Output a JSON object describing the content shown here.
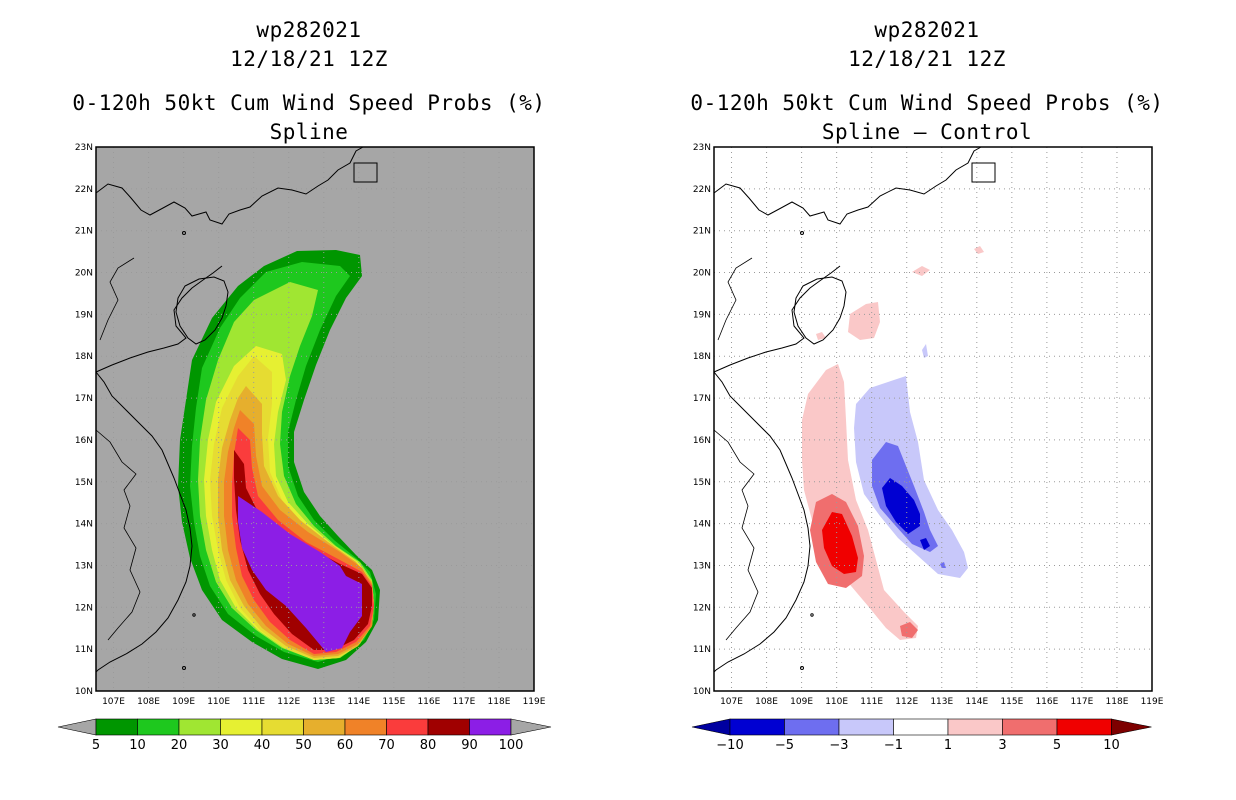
{
  "left": {
    "title_id": "wp282021",
    "title_date": "12/18/21 12Z",
    "title_product": "0-120h 50kt Cum Wind Speed Probs (%)",
    "subtitle": "Spline",
    "background": "#a6a6a6",
    "colorbar": {
      "labels": [
        "5",
        "10",
        "20",
        "30",
        "40",
        "50",
        "60",
        "70",
        "80",
        "90",
        "100"
      ],
      "colors": [
        "#009600",
        "#1ec81e",
        "#a0e632",
        "#e6f032",
        "#e6dc32",
        "#e6af2d",
        "#f08228",
        "#fa3c3c",
        "#a00000",
        "#8c1ee6"
      ],
      "under_color": "#a6a6a6",
      "over_color": "#a6a6a6"
    }
  },
  "right": {
    "title_id": "wp282021",
    "title_date": "12/18/21 12Z",
    "title_product": "0-120h 50kt Cum Wind Speed Probs (%)",
    "subtitle": "Spline – Control",
    "background": "#ffffff",
    "colorbar": {
      "labels": [
        "−10",
        "−5",
        "−3",
        "−1",
        "1",
        "3",
        "5",
        "10"
      ],
      "colors": [
        "#0000d2",
        "#6e6ef0",
        "#c8c8fa",
        "#ffffff",
        "#fac8c8",
        "#f06e6e",
        "#f00000"
      ],
      "under_color": "#0000a0",
      "over_color": "#7d0000"
    }
  },
  "map": {
    "lat_labels": [
      "23N",
      "22N",
      "21N",
      "20N",
      "19N",
      "18N",
      "17N",
      "16N",
      "15N",
      "14N",
      "13N",
      "12N",
      "11N",
      "10N"
    ],
    "lon_labels": [
      "107E",
      "108E",
      "109E",
      "110E",
      "111E",
      "112E",
      "113E",
      "114E",
      "115E",
      "116E",
      "117E",
      "118E",
      "119E"
    ],
    "lon_range": [
      106.5,
      119
    ],
    "lat_range": [
      10,
      23
    ]
  }
}
